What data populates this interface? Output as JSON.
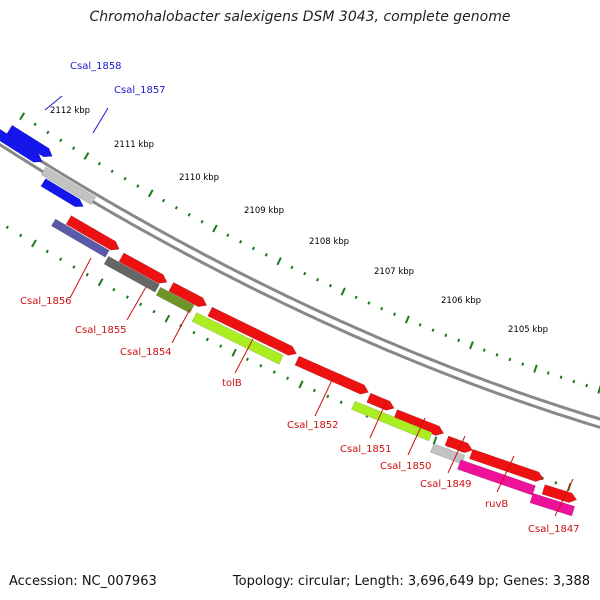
{
  "title": "Chromohalobacter salexigens DSM 3043, complete genome",
  "footer": {
    "accession": "Accession: NC_007963",
    "summary": "Topology: circular; Length: 3,696,649 bp; Genes: 3,388"
  },
  "colors": {
    "backbone": "#888888",
    "ticks": "#1a7a1a",
    "label_forward": "#1a1acc",
    "label_reverse": "#cc1111"
  },
  "kbp_labels": [
    "2112 kbp",
    "2111 kbp",
    "2110 kbp",
    "2109 kbp",
    "2108 kbp",
    "2107 kbp",
    "2106 kbp",
    "2105 kbp"
  ],
  "gene_labels": [
    {
      "text": "Csal_1858",
      "strand": "forward"
    },
    {
      "text": "Csal_1857",
      "strand": "forward"
    },
    {
      "text": "Csal_1856",
      "strand": "reverse"
    },
    {
      "text": "Csal_1855",
      "strand": "reverse"
    },
    {
      "text": "Csal_1854",
      "strand": "reverse"
    },
    {
      "text": "tolB",
      "strand": "reverse"
    },
    {
      "text": "Csal_1852",
      "strand": "reverse"
    },
    {
      "text": "Csal_1851",
      "strand": "reverse"
    },
    {
      "text": "Csal_1850",
      "strand": "reverse"
    },
    {
      "text": "Csal_1849",
      "strand": "reverse"
    },
    {
      "text": "ruvB",
      "strand": "reverse"
    },
    {
      "text": "Csal_1847",
      "strand": "reverse"
    }
  ],
  "feature_colors": {
    "cds": "#ee1111",
    "blue": "#1515ee",
    "light_grey": "#c2c2c2",
    "navy_grey": "#5a5aa8",
    "dark_grey": "#666666",
    "olive": "#6e9428",
    "yellow_green": "#aaee22",
    "magenta": "#ee1199"
  }
}
